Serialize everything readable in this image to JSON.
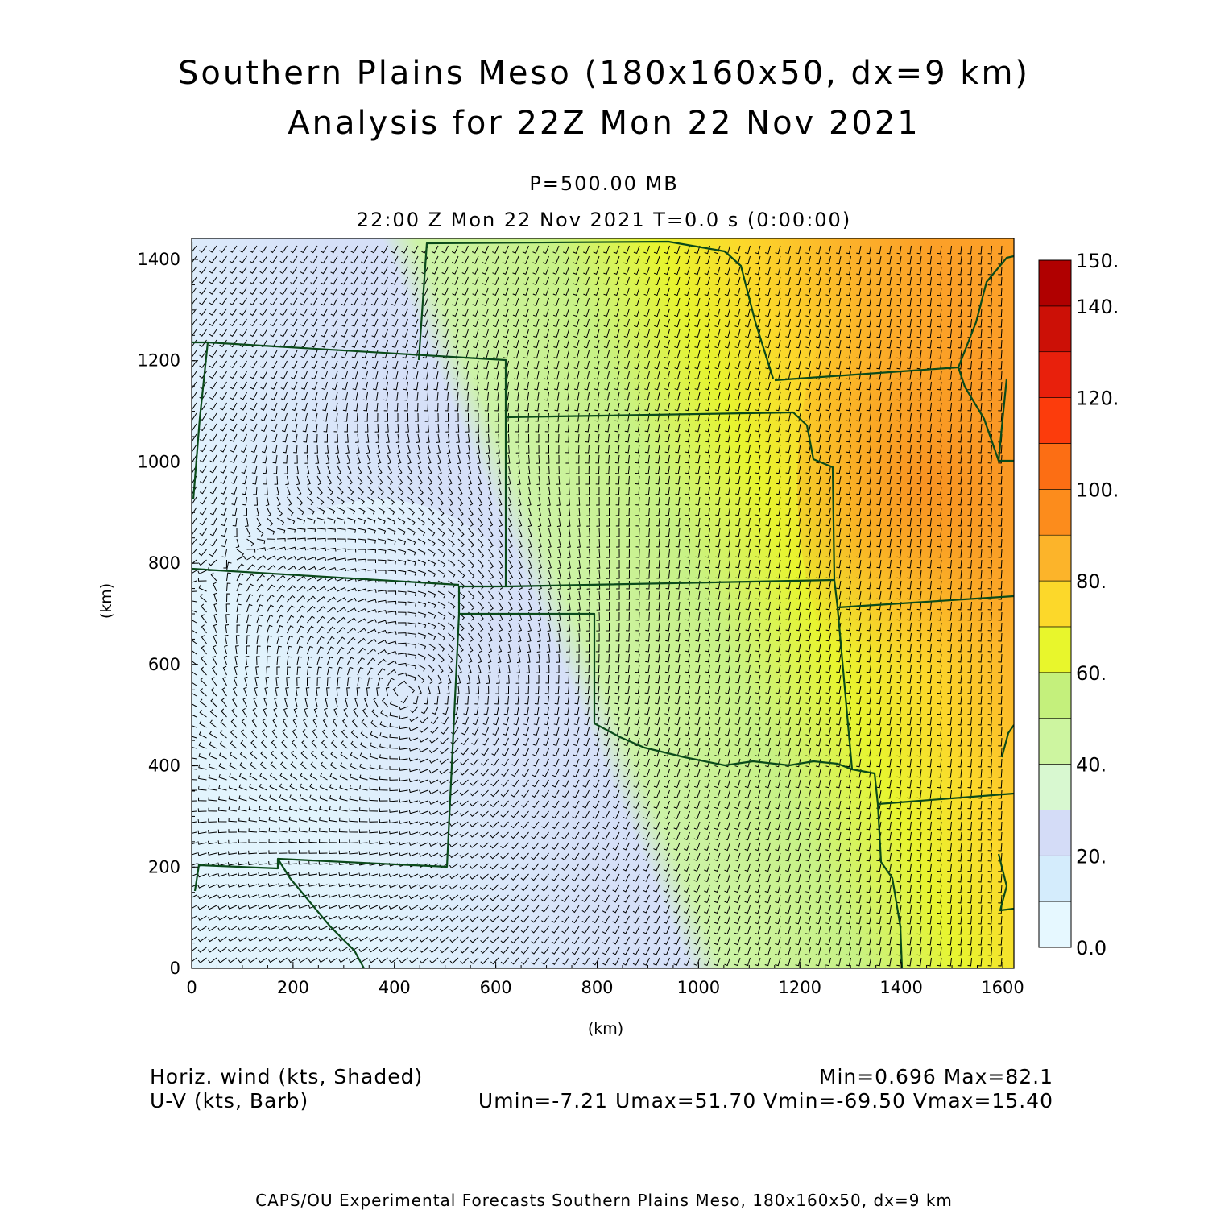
{
  "title": {
    "line1": "Southern Plains Meso (180x160x50, dx=9 km)",
    "line2": "Analysis for 22Z Mon 22 Nov 2021"
  },
  "level_label": "P=500.00 MB",
  "time_label": "22:00 Z Mon 22 Nov 2021    T=0.0 s (0:00:00)",
  "axes": {
    "xlabel": "(km)",
    "ylabel": "(km)",
    "x_ticks": [
      "0",
      "200",
      "400",
      "600",
      "800",
      "1000",
      "1200",
      "1400",
      "1600"
    ],
    "y_ticks": [
      "0",
      "200",
      "400",
      "600",
      "800",
      "1000",
      "1200",
      "1400"
    ],
    "xlim": [
      0,
      1620
    ],
    "ylim": [
      0,
      1440
    ]
  },
  "colorbar": {
    "labels": [
      "0.0",
      "20.",
      "40.",
      "60.",
      "80.",
      "100.",
      "120.",
      "140.",
      "150."
    ],
    "levels": [
      0,
      10,
      20,
      30,
      40,
      50,
      60,
      70,
      80,
      90,
      100,
      110,
      120,
      130,
      140,
      150
    ],
    "colors": [
      "#e6f8ff",
      "#d4ecfc",
      "#d4dcf7",
      "#d8f8d0",
      "#cdf5a0",
      "#c4f07c",
      "#e8f62c",
      "#fcd82a",
      "#fcb42a",
      "#fc8c1c",
      "#fc6e14",
      "#fc3c0c",
      "#e8200c",
      "#cc1006",
      "#b00000"
    ]
  },
  "footer": {
    "left1": "Horiz. wind (kts, Shaded)",
    "left2": "U-V (kts, Barb)",
    "right1": "Min=0.696  Max=82.1",
    "right2": "Umin=-7.21  Umax=51.70  Vmin=-69.50  Vmax=15.40"
  },
  "credit": "CAPS/OU Experimental Forecasts  Southern Plains Meso, 180x160x50, dx=9 km",
  "colors": {
    "state_borders": "#0a4a1a",
    "barbs": "#000000"
  },
  "legend_layers": [
    "Horizontal wind speed (shaded)",
    "Wind barbs (U-V)",
    "State boundaries"
  ]
}
